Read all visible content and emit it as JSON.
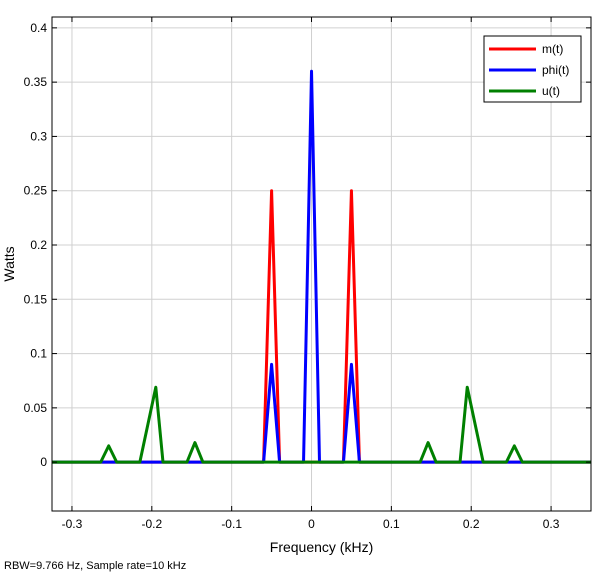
{
  "chart_data": {
    "type": "line",
    "xlabel": "Frequency (kHz)",
    "ylabel": "Watts",
    "xlim": [
      -0.325,
      0.35
    ],
    "ylim": [
      -0.045,
      0.41
    ],
    "xticks": [
      -0.3,
      -0.2,
      -0.1,
      0,
      0.1,
      0.2,
      0.3
    ],
    "xtick_labels": [
      "-0.3",
      "-0.2",
      "-0.1",
      "0",
      "0.1",
      "0.2",
      "0.3"
    ],
    "yticks": [
      0,
      0.05,
      0.1,
      0.15,
      0.2,
      0.25,
      0.3,
      0.35,
      0.4
    ],
    "ytick_labels": [
      "0",
      "0.05",
      "0.1",
      "0.15",
      "0.2",
      "0.25",
      "0.3",
      "0.35",
      "0.4"
    ],
    "grid": true,
    "legend_position": "top-right",
    "series": [
      {
        "name": "m(t)",
        "color": "#ff0000",
        "x": [
          -0.325,
          -0.06,
          -0.05,
          -0.04,
          0.04,
          0.05,
          0.06,
          0.35
        ],
        "y": [
          0,
          0,
          0.25,
          0,
          0,
          0.25,
          0,
          0
        ]
      },
      {
        "name": "phi(t)",
        "color": "#0000ff",
        "x": [
          -0.325,
          -0.06,
          -0.05,
          -0.04,
          -0.01,
          0,
          0.01,
          0.04,
          0.05,
          0.06,
          0.35
        ],
        "y": [
          0,
          0,
          0.09,
          0,
          0,
          0.36,
          0,
          0,
          0.09,
          0,
          0
        ]
      },
      {
        "name": "u(t)",
        "color": "#008000",
        "x": [
          -0.325,
          -0.264,
          -0.254,
          -0.244,
          -0.215,
          -0.195,
          -0.186,
          -0.156,
          -0.146,
          -0.136,
          0.136,
          0.146,
          0.156,
          0.186,
          0.195,
          0.215,
          0.244,
          0.254,
          0.264,
          0.35
        ],
        "y": [
          0,
          0,
          0.015,
          0,
          0,
          0.069,
          0,
          0,
          0.018,
          0,
          0,
          0.018,
          0,
          0,
          0.069,
          0,
          0,
          0.015,
          0,
          0
        ]
      }
    ]
  },
  "footer": "RBW=9.766 Hz, Sample rate=10 kHz"
}
